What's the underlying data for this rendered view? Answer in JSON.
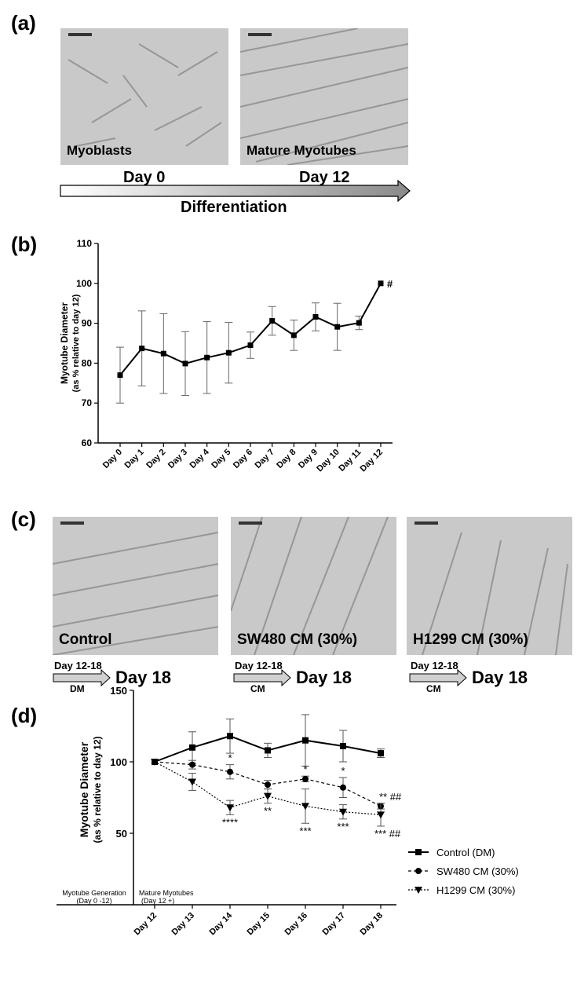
{
  "panel_a": {
    "label": "(a)",
    "images": [
      {
        "caption": "Myoblasts",
        "day": "Day 0"
      },
      {
        "caption": "Mature Myotubes",
        "day": "Day 12"
      }
    ],
    "arrow_label": "Differentiation"
  },
  "panel_c": {
    "label": "(c)",
    "images": [
      {
        "caption": "Control",
        "arrow_top": "Day 12-18",
        "arrow_bottom": "DM",
        "day": "Day 18"
      },
      {
        "caption": "SW480 CM (30%)",
        "arrow_top": "Day 12-18",
        "arrow_bottom": "CM",
        "day": "Day 18"
      },
      {
        "caption": "H1299 CM (30%)",
        "arrow_top": "Day 12-18",
        "arrow_bottom": "CM",
        "day": "Day 18"
      }
    ]
  },
  "chart_data": [
    {
      "panel": "(b)",
      "type": "line",
      "ylabel": "Myotube Diameter",
      "ylabel_sub": "(as % relative to day 12)",
      "ylim": [
        60,
        110
      ],
      "yticks": [
        60,
        70,
        80,
        90,
        100,
        110
      ],
      "categories": [
        "Day 0",
        "Day 1",
        "Day 2",
        "Day 3",
        "Day 4",
        "Day 5",
        "Day 6",
        "Day 7",
        "Day 8",
        "Day 9",
        "Day 10",
        "Day 11",
        "Day 12"
      ],
      "values": [
        77,
        83.7,
        82.4,
        79.9,
        81.4,
        82.6,
        84.5,
        90.6,
        87,
        91.6,
        89.1,
        90.1,
        100
      ],
      "errors": [
        7,
        9.4,
        10,
        8,
        9,
        7.6,
        3.3,
        3.6,
        3.8,
        3.5,
        5.9,
        1.7,
        0
      ],
      "annotations": [
        {
          "index": 12,
          "text": "#"
        }
      ],
      "marker": "square"
    },
    {
      "panel": "(d)",
      "type": "line",
      "ylabel": "Myotube Diameter",
      "ylabel_sub": "(as % relative to day 12)",
      "ylim": [
        0,
        150
      ],
      "yticks": [
        50,
        100,
        150
      ],
      "categories": [
        "Day 12",
        "Day 13",
        "Day 14",
        "Day 15",
        "Day 16",
        "Day 17",
        "Day 18"
      ],
      "left_region": {
        "title": "Myotube Generation",
        "sub": "(Day 0 -12)"
      },
      "right_region": {
        "title": "Mature Myotubes",
        "sub": "(Day 12 +)"
      },
      "series": [
        {
          "name": "Control (DM)",
          "marker": "square",
          "style": "solid",
          "values": [
            100,
            110,
            118,
            108,
            115,
            111,
            106
          ],
          "errors": [
            0,
            11,
            12,
            5,
            18,
            11,
            3
          ],
          "labels": [
            "",
            "",
            "",
            "",
            "",
            "",
            ""
          ]
        },
        {
          "name": "SW480 CM (30%)",
          "marker": "circle",
          "style": "dashed",
          "values": [
            100,
            98,
            93,
            84,
            88,
            82,
            69
          ],
          "errors": [
            0,
            3,
            5,
            3,
            2,
            7,
            2
          ],
          "labels": [
            "",
            "",
            "*",
            "",
            "*",
            "*",
            "**  ##"
          ]
        },
        {
          "name": "H1299 CM (30%)",
          "marker": "triangle-down",
          "style": "dotted",
          "values": [
            100,
            86,
            68,
            76,
            69,
            65,
            63
          ],
          "errors": [
            0,
            6,
            5,
            5,
            12,
            5,
            8
          ],
          "labels": [
            "",
            "",
            "****",
            "**",
            "***",
            "***",
            "***  ##"
          ]
        }
      ],
      "legend_position": "right"
    }
  ]
}
